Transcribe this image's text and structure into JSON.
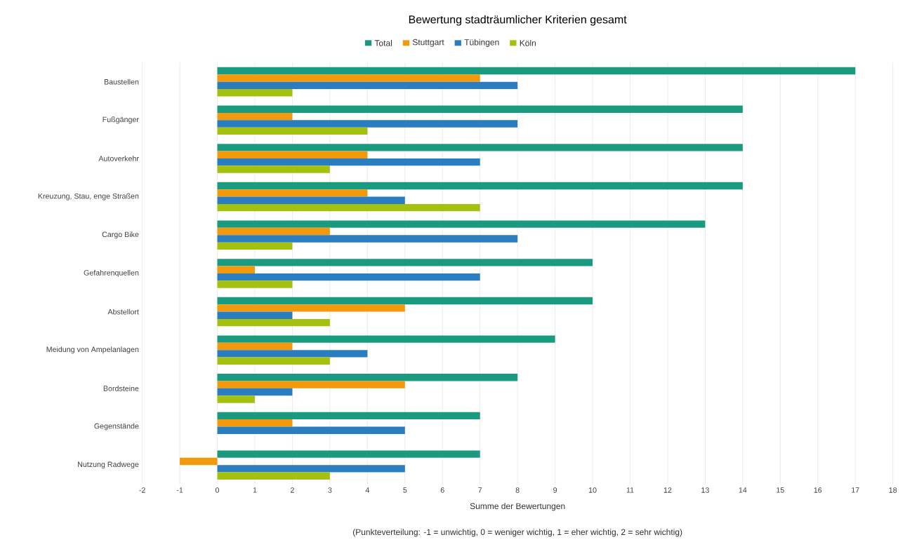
{
  "chart_data": {
    "type": "bar",
    "orientation": "horizontal",
    "title": "Bewertung stadträumlicher Kriterien gesamt",
    "categories": [
      "Baustellen",
      "Fußgänger",
      "Autoverkehr",
      "Kreuzung, Stau, enge Straßen",
      "Cargo Bike",
      "Gefahrenquellen",
      "Abstellort",
      "Meidung von Ampelanlagen",
      "Bordsteine",
      "Gegenstände",
      "Nutzung Radwege"
    ],
    "series": [
      {
        "name": "Total",
        "color": "#1a9a7f",
        "values": [
          17,
          14,
          14,
          14,
          13,
          10,
          10,
          9,
          8,
          7,
          7
        ]
      },
      {
        "name": "Stuttgart",
        "color": "#f29a0c",
        "values": [
          7,
          2,
          4,
          4,
          3,
          1,
          5,
          2,
          5,
          2,
          -1
        ]
      },
      {
        "name": "Tübingen",
        "color": "#2a7ec0",
        "values": [
          8,
          8,
          7,
          5,
          8,
          7,
          2,
          4,
          2,
          5,
          5
        ]
      },
      {
        "name": "Köln",
        "color": "#a5c10f",
        "values": [
          2,
          4,
          3,
          7,
          2,
          2,
          3,
          3,
          1,
          0,
          3
        ]
      }
    ],
    "xlim": [
      -2,
      18
    ],
    "xticks": [
      -2,
      -1,
      0,
      1,
      2,
      3,
      4,
      5,
      6,
      7,
      8,
      9,
      10,
      11,
      12,
      13,
      14,
      15,
      16,
      17,
      18
    ],
    "grid": "x",
    "legend": "top",
    "xlabel": "Summe der Bewertungen",
    "annotations": [
      "(Punkteverteilung: -1 = unwichtig, 0 = weniger wichtig, 1 = eher wichtig, 2 = sehr wichtig)"
    ]
  }
}
